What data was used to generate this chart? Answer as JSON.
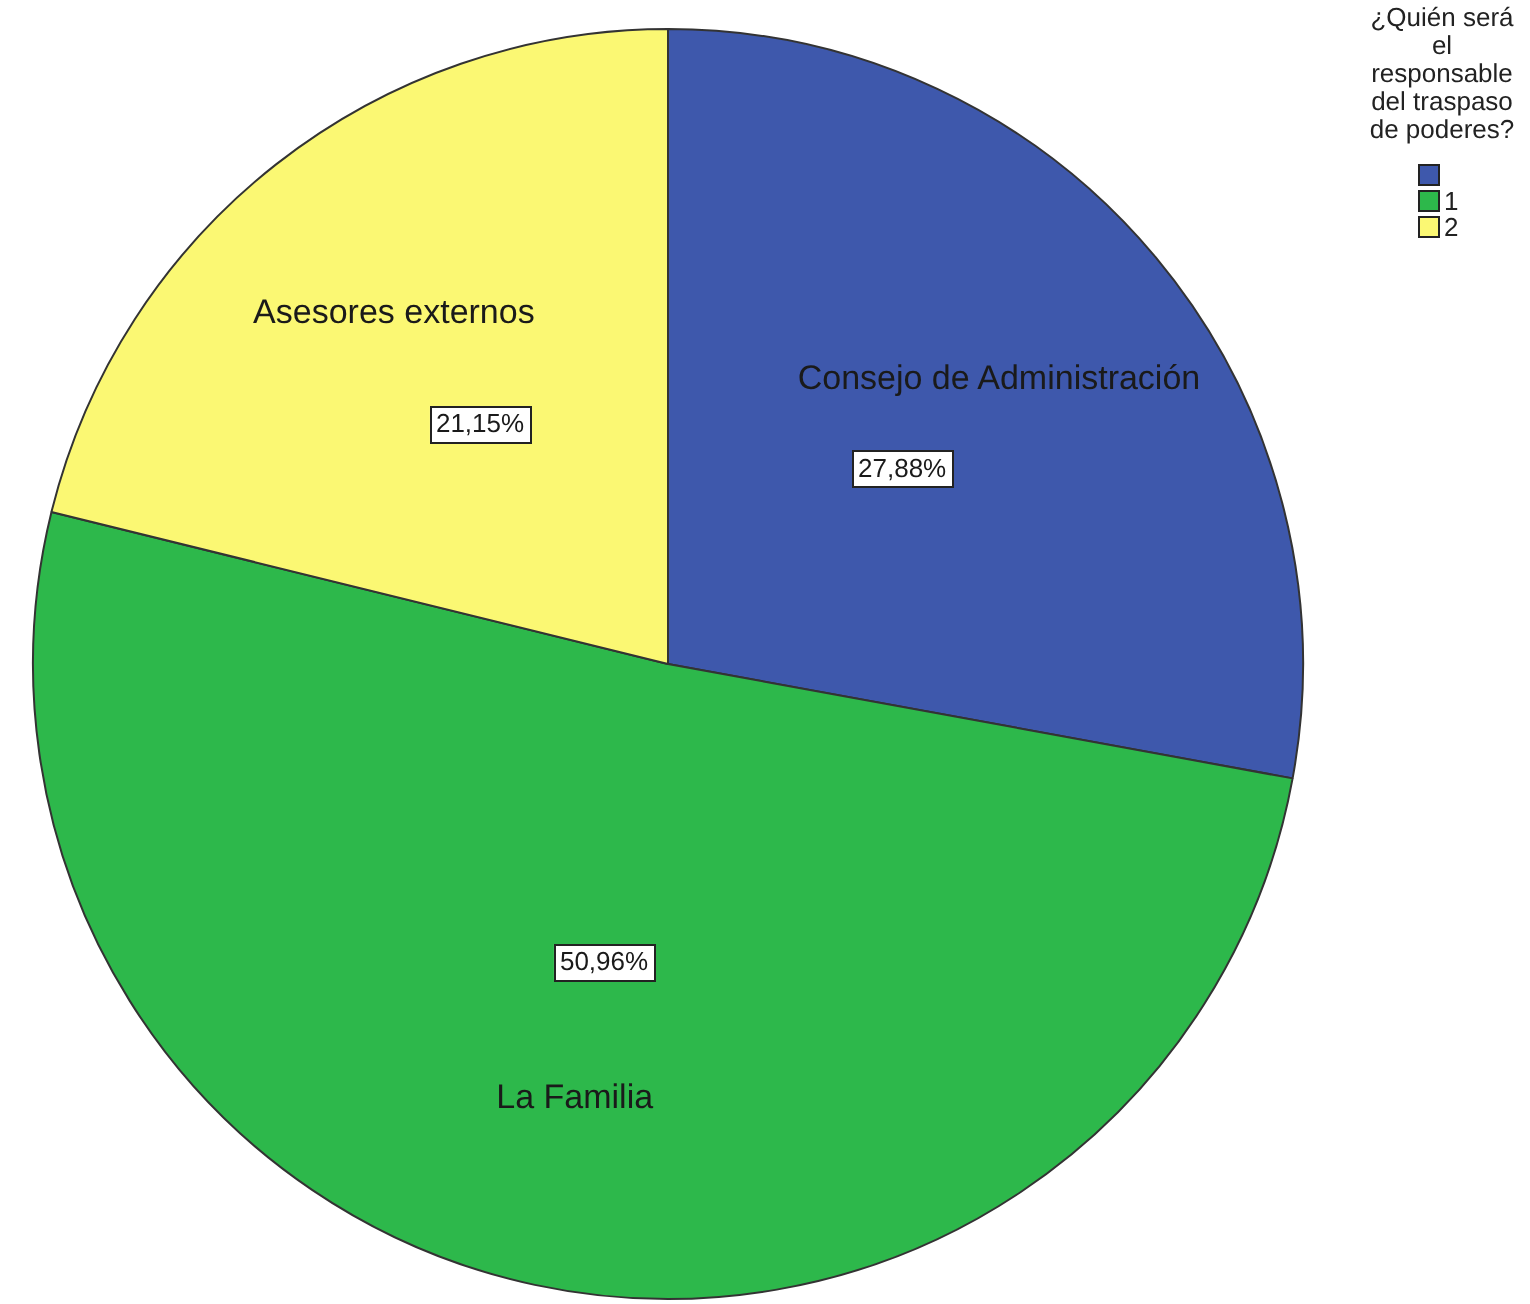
{
  "chart_data": {
    "type": "pie",
    "categories": [
      null,
      "1",
      "2"
    ],
    "values": [
      27.88,
      50.96,
      21.15
    ],
    "colors": [
      "#3e58ac",
      "#2db84b",
      "#fbf873"
    ],
    "value_labels": [
      "27,88%",
      "50,96%",
      "21,15%"
    ],
    "annotations": [
      "Consejo de Administración",
      "La Familia",
      "Asesores externos"
    ],
    "legend_title": "¿Quién será el responsable del traspaso de poderes?",
    "legend": "top right"
  }
}
